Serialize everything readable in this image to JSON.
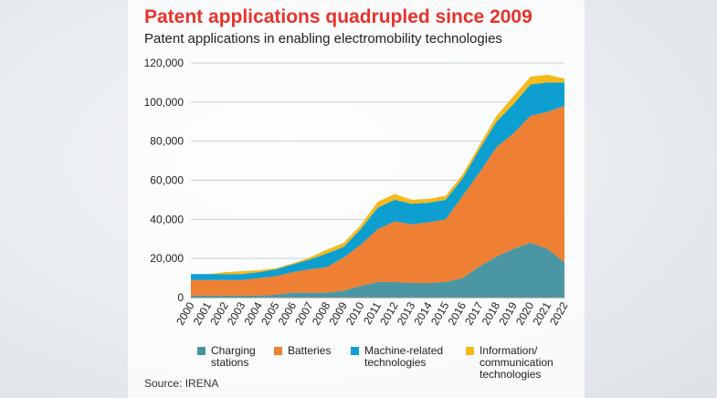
{
  "header": {
    "title": "Patent applications quadrupled since 2009",
    "subtitle": "Patent applications in enabling electromobility technologies"
  },
  "footer": {
    "source": "Source: IRENA"
  },
  "colors": {
    "title": "#e8322b",
    "charging": "#4a97a3",
    "batteries": "#ef7f33",
    "machine": "#0d9fd0",
    "ict": "#f5b91a"
  },
  "chart_data": {
    "type": "area",
    "stacked": true,
    "title": "Patent applications quadrupled since 2009",
    "subtitle": "Patent applications in enabling electromobility technologies",
    "xlabel": "",
    "ylabel": "",
    "ylim": [
      0,
      120000
    ],
    "yticks": [
      "0",
      "20,000",
      "40,000",
      "60,000",
      "80,000",
      "100,000",
      "120,000"
    ],
    "grid": "horizontal",
    "legend_position": "bottom",
    "x": [
      "2000",
      "2001",
      "2002",
      "2003",
      "2004",
      "2005",
      "2006",
      "2007",
      "2008",
      "2009",
      "2010",
      "2011",
      "2012",
      "2013",
      "2014",
      "2015",
      "2016",
      "2017",
      "2018",
      "2019",
      "2020",
      "2021",
      "2022"
    ],
    "series": [
      {
        "name": "Charging stations",
        "legend_lines": [
          "Charging",
          "stations"
        ],
        "color": "#4a97a3",
        "values": [
          1000,
          1000,
          1000,
          1000,
          1000,
          1500,
          2500,
          2500,
          2500,
          3500,
          6000,
          8000,
          8000,
          7500,
          7500,
          8000,
          10000,
          16000,
          21000,
          25000,
          28000,
          25000,
          18000
        ]
      },
      {
        "name": "Batteries",
        "legend_lines": [
          "Batteries"
        ],
        "color": "#ef7f33",
        "values": [
          8000,
          8000,
          8000,
          8000,
          9000,
          9500,
          10500,
          12000,
          13000,
          17000,
          21000,
          27000,
          31000,
          30000,
          31000,
          32000,
          42000,
          48000,
          56000,
          59000,
          65000,
          70000,
          80000
        ]
      },
      {
        "name": "Machine-related technologies",
        "legend_lines": [
          "Machine-related",
          "technologies"
        ],
        "color": "#0d9fd0",
        "values": [
          3000,
          3000,
          3000,
          3000,
          3000,
          3500,
          4000,
          5000,
          7000,
          5500,
          8000,
          11000,
          11000,
          10500,
          10000,
          10000,
          9000,
          12000,
          13000,
          15000,
          16000,
          15000,
          12000
        ]
      },
      {
        "name": "Information/ communication technologies",
        "legend_lines": [
          "Information/",
          "communication",
          "technologies"
        ],
        "color": "#f5b91a",
        "values": [
          0,
          0,
          1000,
          1500,
          1000,
          500,
          500,
          1000,
          2000,
          2000,
          2000,
          3000,
          3000,
          2000,
          2000,
          2000,
          2000,
          2000,
          3000,
          4000,
          4000,
          4000,
          2000
        ]
      }
    ]
  }
}
